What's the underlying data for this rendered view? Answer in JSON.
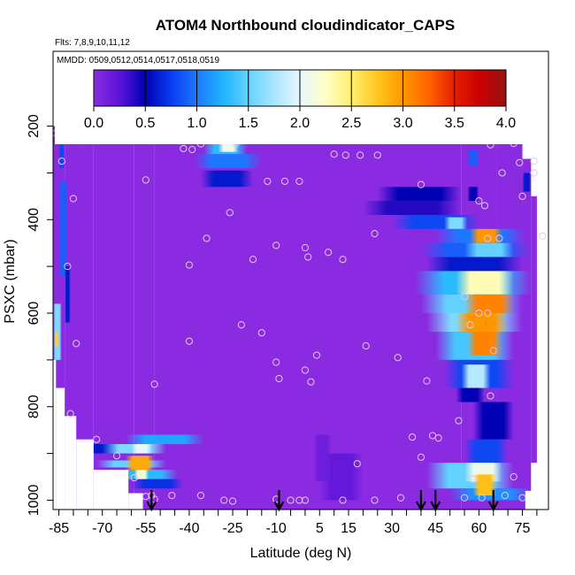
{
  "chart_data": {
    "type": "heatmap",
    "title": "ATOM4 Northbound cloudindicator_CAPS",
    "flights_text": "Flts: 7,8,9,10,11,12",
    "dates_text": "MMDD: 0509,0512,0514,0517,0518,0519",
    "xlabel": "Latitude (deg N)",
    "ylabel": "PSXC (mbar)",
    "xlim": [
      -87,
      84
    ],
    "ylim": [
      1020,
      40
    ],
    "y_reversed": true,
    "x_ticks": [
      "-85",
      "-70",
      "-55",
      "-40",
      "-25",
      "-10",
      "5",
      "15",
      "30",
      "45",
      "60",
      "75"
    ],
    "x_tick_values": [
      -85,
      -70,
      -55,
      -40,
      -25,
      -10,
      5,
      15,
      30,
      45,
      60,
      75
    ],
    "x_minor_step": 5,
    "y_ticks": [
      "200",
      "400",
      "600",
      "800",
      "1000"
    ],
    "y_tick_values": [
      200,
      400,
      600,
      800,
      1000
    ],
    "colorbar": {
      "min": 0,
      "max": 4,
      "tick_labels": [
        "0.0",
        "0.5",
        "1.0",
        "1.5",
        "2.0",
        "2.5",
        "3.0",
        "3.5",
        "4.0"
      ],
      "tick_values": [
        0,
        0.5,
        1,
        1.5,
        2,
        2.5,
        3,
        3.5,
        4
      ],
      "stops": [
        {
          "v": 0.0,
          "color": "#8a2be2"
        },
        {
          "v": 0.25,
          "color": "#5a14d8"
        },
        {
          "v": 0.5,
          "color": "#0000b4"
        },
        {
          "v": 0.75,
          "color": "#0a3cf0"
        },
        {
          "v": 1.0,
          "color": "#1e78ff"
        },
        {
          "v": 1.25,
          "color": "#1eb4ff"
        },
        {
          "v": 1.5,
          "color": "#64d2ff"
        },
        {
          "v": 1.75,
          "color": "#aae6ff"
        },
        {
          "v": 2.0,
          "color": "#e6f7ff"
        },
        {
          "v": 2.25,
          "color": "#ffffc8"
        },
        {
          "v": 2.5,
          "color": "#ffef6e"
        },
        {
          "v": 2.75,
          "color": "#ffc81e"
        },
        {
          "v": 3.0,
          "color": "#ff9600"
        },
        {
          "v": 3.25,
          "color": "#ff6400"
        },
        {
          "v": 3.5,
          "color": "#e61e00"
        },
        {
          "v": 3.75,
          "color": "#c80000"
        },
        {
          "v": 4.0,
          "color": "#961414"
        }
      ]
    },
    "background_value": 0,
    "coverage": [
      {
        "lat": [
          -87,
          -83
        ],
        "p": [
          200,
          1020
        ]
      },
      {
        "lat": [
          -83,
          -78
        ],
        "p": [
          230,
          1020
        ]
      },
      {
        "lat": [
          -78,
          -73
        ],
        "p": [
          200,
          1020
        ]
      },
      {
        "lat": [
          -73,
          -59
        ],
        "p": [
          200,
          1020
        ]
      },
      {
        "lat": [
          -59,
          -52
        ],
        "p": [
          200,
          1020
        ]
      },
      {
        "lat": [
          -52,
          54
        ],
        "p": [
          175,
          1020
        ]
      },
      {
        "lat": [
          54,
          66
        ],
        "p": [
          215,
          1020
        ]
      },
      {
        "lat": [
          66,
          75
        ],
        "p": [
          215,
          1020
        ]
      },
      {
        "lat": [
          75,
          78
        ],
        "p": [
          270,
          1020
        ]
      },
      {
        "lat": [
          78,
          81
        ],
        "p": [
          350,
          1020
        ]
      }
    ],
    "blank_regions": [
      {
        "lat": [
          -87,
          -86
        ],
        "p": [
          700,
          1020
        ]
      },
      {
        "lat": [
          -86,
          -83
        ],
        "p": [
          760,
          1020
        ]
      },
      {
        "lat": [
          -83,
          -79
        ],
        "p": [
          820,
          1020
        ]
      },
      {
        "lat": [
          -79,
          -73
        ],
        "p": [
          870,
          1020
        ]
      },
      {
        "lat": [
          -73,
          -61
        ],
        "p": [
          935,
          1020
        ]
      },
      {
        "lat": [
          -61,
          -56
        ],
        "p": [
          985,
          1020
        ]
      },
      {
        "lat": [
          76,
          79
        ],
        "p": [
          980,
          1020
        ]
      },
      {
        "lat": [
          78,
          84
        ],
        "p": [
          920,
          1020
        ]
      },
      {
        "lat": [
          80,
          84
        ],
        "p": [
          200,
          920
        ]
      }
    ],
    "features": [
      {
        "lat": [
          -87,
          -84
        ],
        "p": [
          580,
          700
        ],
        "v": 1.6
      },
      {
        "lat": [
          -86.5,
          -85
        ],
        "p": [
          640,
          670
        ],
        "v": 2.7
      },
      {
        "lat": [
          -85,
          -82
        ],
        "p": [
          320,
          520
        ],
        "v": 0.9
      },
      {
        "lat": [
          -85,
          -83
        ],
        "p": [
          240,
          290
        ],
        "v": 0.8
      },
      {
        "lat": [
          -83,
          -81
        ],
        "p": [
          500,
          620
        ],
        "v": 0.6
      },
      {
        "lat": [
          -80,
          -60
        ],
        "p": [
          880,
          900
        ],
        "v": 0.6
      },
      {
        "lat": [
          -70,
          -48
        ],
        "p": [
          880,
          900
        ],
        "v": 1.6
      },
      {
        "lat": [
          -60,
          -53
        ],
        "p": [
          880,
          900
        ],
        "v": 2.0
      },
      {
        "lat": [
          -62,
          -35
        ],
        "p": [
          860,
          880
        ],
        "v": 1.2
      },
      {
        "lat": [
          -72,
          -48
        ],
        "p": [
          915,
          930
        ],
        "v": 1.5
      },
      {
        "lat": [
          -62,
          -52
        ],
        "p": [
          905,
          935
        ],
        "v": 2.9
      },
      {
        "lat": [
          -66,
          -44
        ],
        "p": [
          935,
          955
        ],
        "v": 1.3
      },
      {
        "lat": [
          -59,
          -54
        ],
        "p": [
          935,
          955
        ],
        "v": 2.2
      },
      {
        "lat": [
          -60,
          -42
        ],
        "p": [
          955,
          975
        ],
        "v": 0.7
      },
      {
        "lat": [
          -35,
          -20
        ],
        "p": [
          225,
          260
        ],
        "v": 1.3
      },
      {
        "lat": [
          -30,
          -23
        ],
        "p": [
          230,
          255
        ],
        "v": 2.1
      },
      {
        "lat": [
          -38,
          -15
        ],
        "p": [
          260,
          290
        ],
        "v": 1.0
      },
      {
        "lat": [
          -36,
          -18
        ],
        "p": [
          295,
          330
        ],
        "v": 0.6
      },
      {
        "lat": [
          5,
          20
        ],
        "p": [
          900,
          1000
        ],
        "v": 0.2
      },
      {
        "lat": [
          3,
          9
        ],
        "p": [
          860,
          960
        ],
        "v": 0.15
      },
      {
        "lat": [
          25,
          54
        ],
        "p": [
          330,
          360
        ],
        "v": 0.5
      },
      {
        "lat": [
          20,
          54
        ],
        "p": [
          360,
          390
        ],
        "v": 0.4
      },
      {
        "lat": [
          30,
          60
        ],
        "p": [
          390,
          420
        ],
        "v": 0.8
      },
      {
        "lat": [
          48,
          56
        ],
        "p": [
          395,
          420
        ],
        "v": 1.6
      },
      {
        "lat": [
          45,
          76
        ],
        "p": [
          420,
          450
        ],
        "v": 1.0
      },
      {
        "lat": [
          57,
          68
        ],
        "p": [
          420,
          450
        ],
        "v": 3.0
      },
      {
        "lat": [
          40,
          78
        ],
        "p": [
          450,
          480
        ],
        "v": 0.9
      },
      {
        "lat": [
          55,
          72
        ],
        "p": [
          450,
          480
        ],
        "v": 1.5
      },
      {
        "lat": [
          42,
          75
        ],
        "p": [
          480,
          510
        ],
        "v": 0.6
      },
      {
        "lat": [
          38,
          78
        ],
        "p": [
          510,
          560
        ],
        "v": 1.3
      },
      {
        "lat": [
          52,
          72
        ],
        "p": [
          510,
          560
        ],
        "v": 2.3
      },
      {
        "lat": [
          40,
          75
        ],
        "p": [
          560,
          600
        ],
        "v": 1.5
      },
      {
        "lat": [
          55,
          72
        ],
        "p": [
          560,
          600
        ],
        "v": 3.1
      },
      {
        "lat": [
          42,
          75
        ],
        "p": [
          600,
          640
        ],
        "v": 1.6
      },
      {
        "lat": [
          52,
          70
        ],
        "p": [
          600,
          640
        ],
        "v": 3.0
      },
      {
        "lat": [
          45,
          72
        ],
        "p": [
          640,
          700
        ],
        "v": 1.4
      },
      {
        "lat": [
          56,
          68
        ],
        "p": [
          640,
          690
        ],
        "v": 3.1
      },
      {
        "lat": [
          48,
          72
        ],
        "p": [
          700,
          760
        ],
        "v": 0.8
      },
      {
        "lat": [
          54,
          64
        ],
        "p": [
          710,
          760
        ],
        "v": 1.8
      },
      {
        "lat": [
          52,
          62
        ],
        "p": [
          760,
          790
        ],
        "v": 0.5
      },
      {
        "lat": [
          58,
          72
        ],
        "p": [
          790,
          870
        ],
        "v": 0.5
      },
      {
        "lat": [
          55,
          70
        ],
        "p": [
          870,
          920
        ],
        "v": 0.8
      },
      {
        "lat": [
          42,
          72
        ],
        "p": [
          920,
          975
        ],
        "v": 1.5
      },
      {
        "lat": [
          55,
          68
        ],
        "p": [
          920,
          960
        ],
        "v": 2.1
      },
      {
        "lat": [
          50,
          78
        ],
        "p": [
          975,
          1000
        ],
        "v": 1.1
      },
      {
        "lat": [
          58,
          66
        ],
        "p": [
          945,
          990
        ],
        "v": 2.8
      },
      {
        "lat": [
          75,
          78
        ],
        "p": [
          300,
          340
        ],
        "v": 0.6
      },
      {
        "lat": [
          56,
          60
        ],
        "p": [
          250,
          285
        ],
        "v": 0.9
      },
      {
        "lat": [
          56,
          60
        ],
        "p": [
          330,
          360
        ],
        "v": 0.5
      }
    ],
    "sample_points": [
      [
        -86,
        215
      ],
      [
        -78,
        205
      ],
      [
        -84,
        275
      ],
      [
        -80,
        355
      ],
      [
        -82,
        500
      ],
      [
        -79,
        665
      ],
      [
        -81,
        815
      ],
      [
        -72,
        870
      ],
      [
        -52,
        752
      ],
      [
        -55,
        315
      ],
      [
        -42,
        248
      ],
      [
        -39,
        250
      ],
      [
        -36,
        238
      ],
      [
        -24,
        238
      ],
      [
        -20,
        210
      ],
      [
        -13,
        318
      ],
      [
        -7,
        318
      ],
      [
        -2,
        318
      ],
      [
        -26,
        385
      ],
      [
        -34,
        440
      ],
      [
        -40,
        497
      ],
      [
        -18,
        485
      ],
      [
        -10,
        455
      ],
      [
        0,
        460
      ],
      [
        -22,
        625
      ],
      [
        -15,
        642
      ],
      [
        -40,
        660
      ],
      [
        -10,
        705
      ],
      [
        0,
        722
      ],
      [
        2,
        747
      ],
      [
        4,
        690
      ],
      [
        -9,
        740
      ],
      [
        1,
        480
      ],
      [
        8,
        470
      ],
      [
        13,
        485
      ],
      [
        10,
        260
      ],
      [
        14,
        262
      ],
      [
        19,
        262
      ],
      [
        25,
        262
      ],
      [
        21,
        670
      ],
      [
        24,
        430
      ],
      [
        32,
        695
      ],
      [
        42,
        745
      ],
      [
        40,
        325
      ],
      [
        52,
        210
      ],
      [
        56,
        210
      ],
      [
        68,
        210
      ],
      [
        64,
        240
      ],
      [
        72,
        237
      ],
      [
        74,
        278
      ],
      [
        79,
        275
      ],
      [
        79,
        300
      ],
      [
        68,
        300
      ],
      [
        75,
        350
      ],
      [
        82,
        435
      ],
      [
        60,
        360
      ],
      [
        62,
        370
      ],
      [
        67,
        440
      ],
      [
        63,
        440
      ],
      [
        55,
        565
      ],
      [
        60,
        600
      ],
      [
        63,
        600
      ],
      [
        57,
        625
      ],
      [
        65,
        680
      ],
      [
        64,
        777
      ],
      [
        53,
        830
      ],
      [
        46,
        867
      ],
      [
        37,
        865
      ],
      [
        44,
        862
      ],
      [
        40,
        908
      ],
      [
        58,
        955
      ],
      [
        55,
        995
      ],
      [
        61,
        995
      ],
      [
        69,
        990
      ],
      [
        72,
        950
      ],
      [
        75,
        995
      ],
      [
        24,
        1000
      ],
      [
        13,
        1000
      ],
      [
        -2,
        1000
      ],
      [
        -10,
        998
      ],
      [
        -25,
        1002
      ],
      [
        -28,
        1000
      ],
      [
        -36,
        990
      ],
      [
        -46,
        990
      ],
      [
        -52,
        998
      ],
      [
        -53,
        990
      ],
      [
        -59,
        952
      ],
      [
        -65,
        905
      ],
      [
        -55,
        992
      ],
      [
        18,
        922
      ],
      [
        0,
        1000
      ],
      [
        -5,
        1000
      ],
      [
        33,
        995
      ]
    ],
    "arrows": [
      -53,
      -9,
      40,
      45,
      65
    ]
  }
}
